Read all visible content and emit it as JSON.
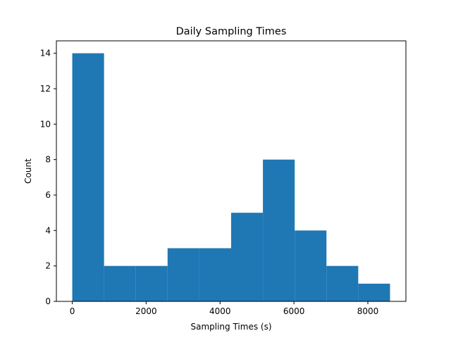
{
  "chart_data": {
    "type": "bar",
    "title": "Daily Sampling Times",
    "xlabel": "Sampling Times (s)",
    "ylabel": "Count",
    "bins": [
      {
        "x0": 0,
        "x1": 860,
        "count": 14
      },
      {
        "x0": 860,
        "x1": 1720,
        "count": 2
      },
      {
        "x0": 1720,
        "x1": 2580,
        "count": 2
      },
      {
        "x0": 2580,
        "x1": 3440,
        "count": 3
      },
      {
        "x0": 3440,
        "x1": 4300,
        "count": 3
      },
      {
        "x0": 4300,
        "x1": 5160,
        "count": 5
      },
      {
        "x0": 5160,
        "x1": 6020,
        "count": 8
      },
      {
        "x0": 6020,
        "x1": 6880,
        "count": 4
      },
      {
        "x0": 6880,
        "x1": 7740,
        "count": 2
      },
      {
        "x0": 7740,
        "x1": 8600,
        "count": 1
      }
    ],
    "xlim": [
      -430,
      9030
    ],
    "ylim": [
      0,
      14.7
    ],
    "xticks": [
      0,
      2000,
      4000,
      6000,
      8000
    ],
    "xtick_labels": [
      "0",
      "2000",
      "4000",
      "6000",
      "8000"
    ],
    "yticks": [
      0,
      2,
      4,
      6,
      8,
      10,
      12,
      14
    ],
    "ytick_labels": [
      "0",
      "2",
      "4",
      "6",
      "8",
      "10",
      "12",
      "14"
    ],
    "bar_color": "#1f77b4",
    "grid": false,
    "legend": "none"
  }
}
